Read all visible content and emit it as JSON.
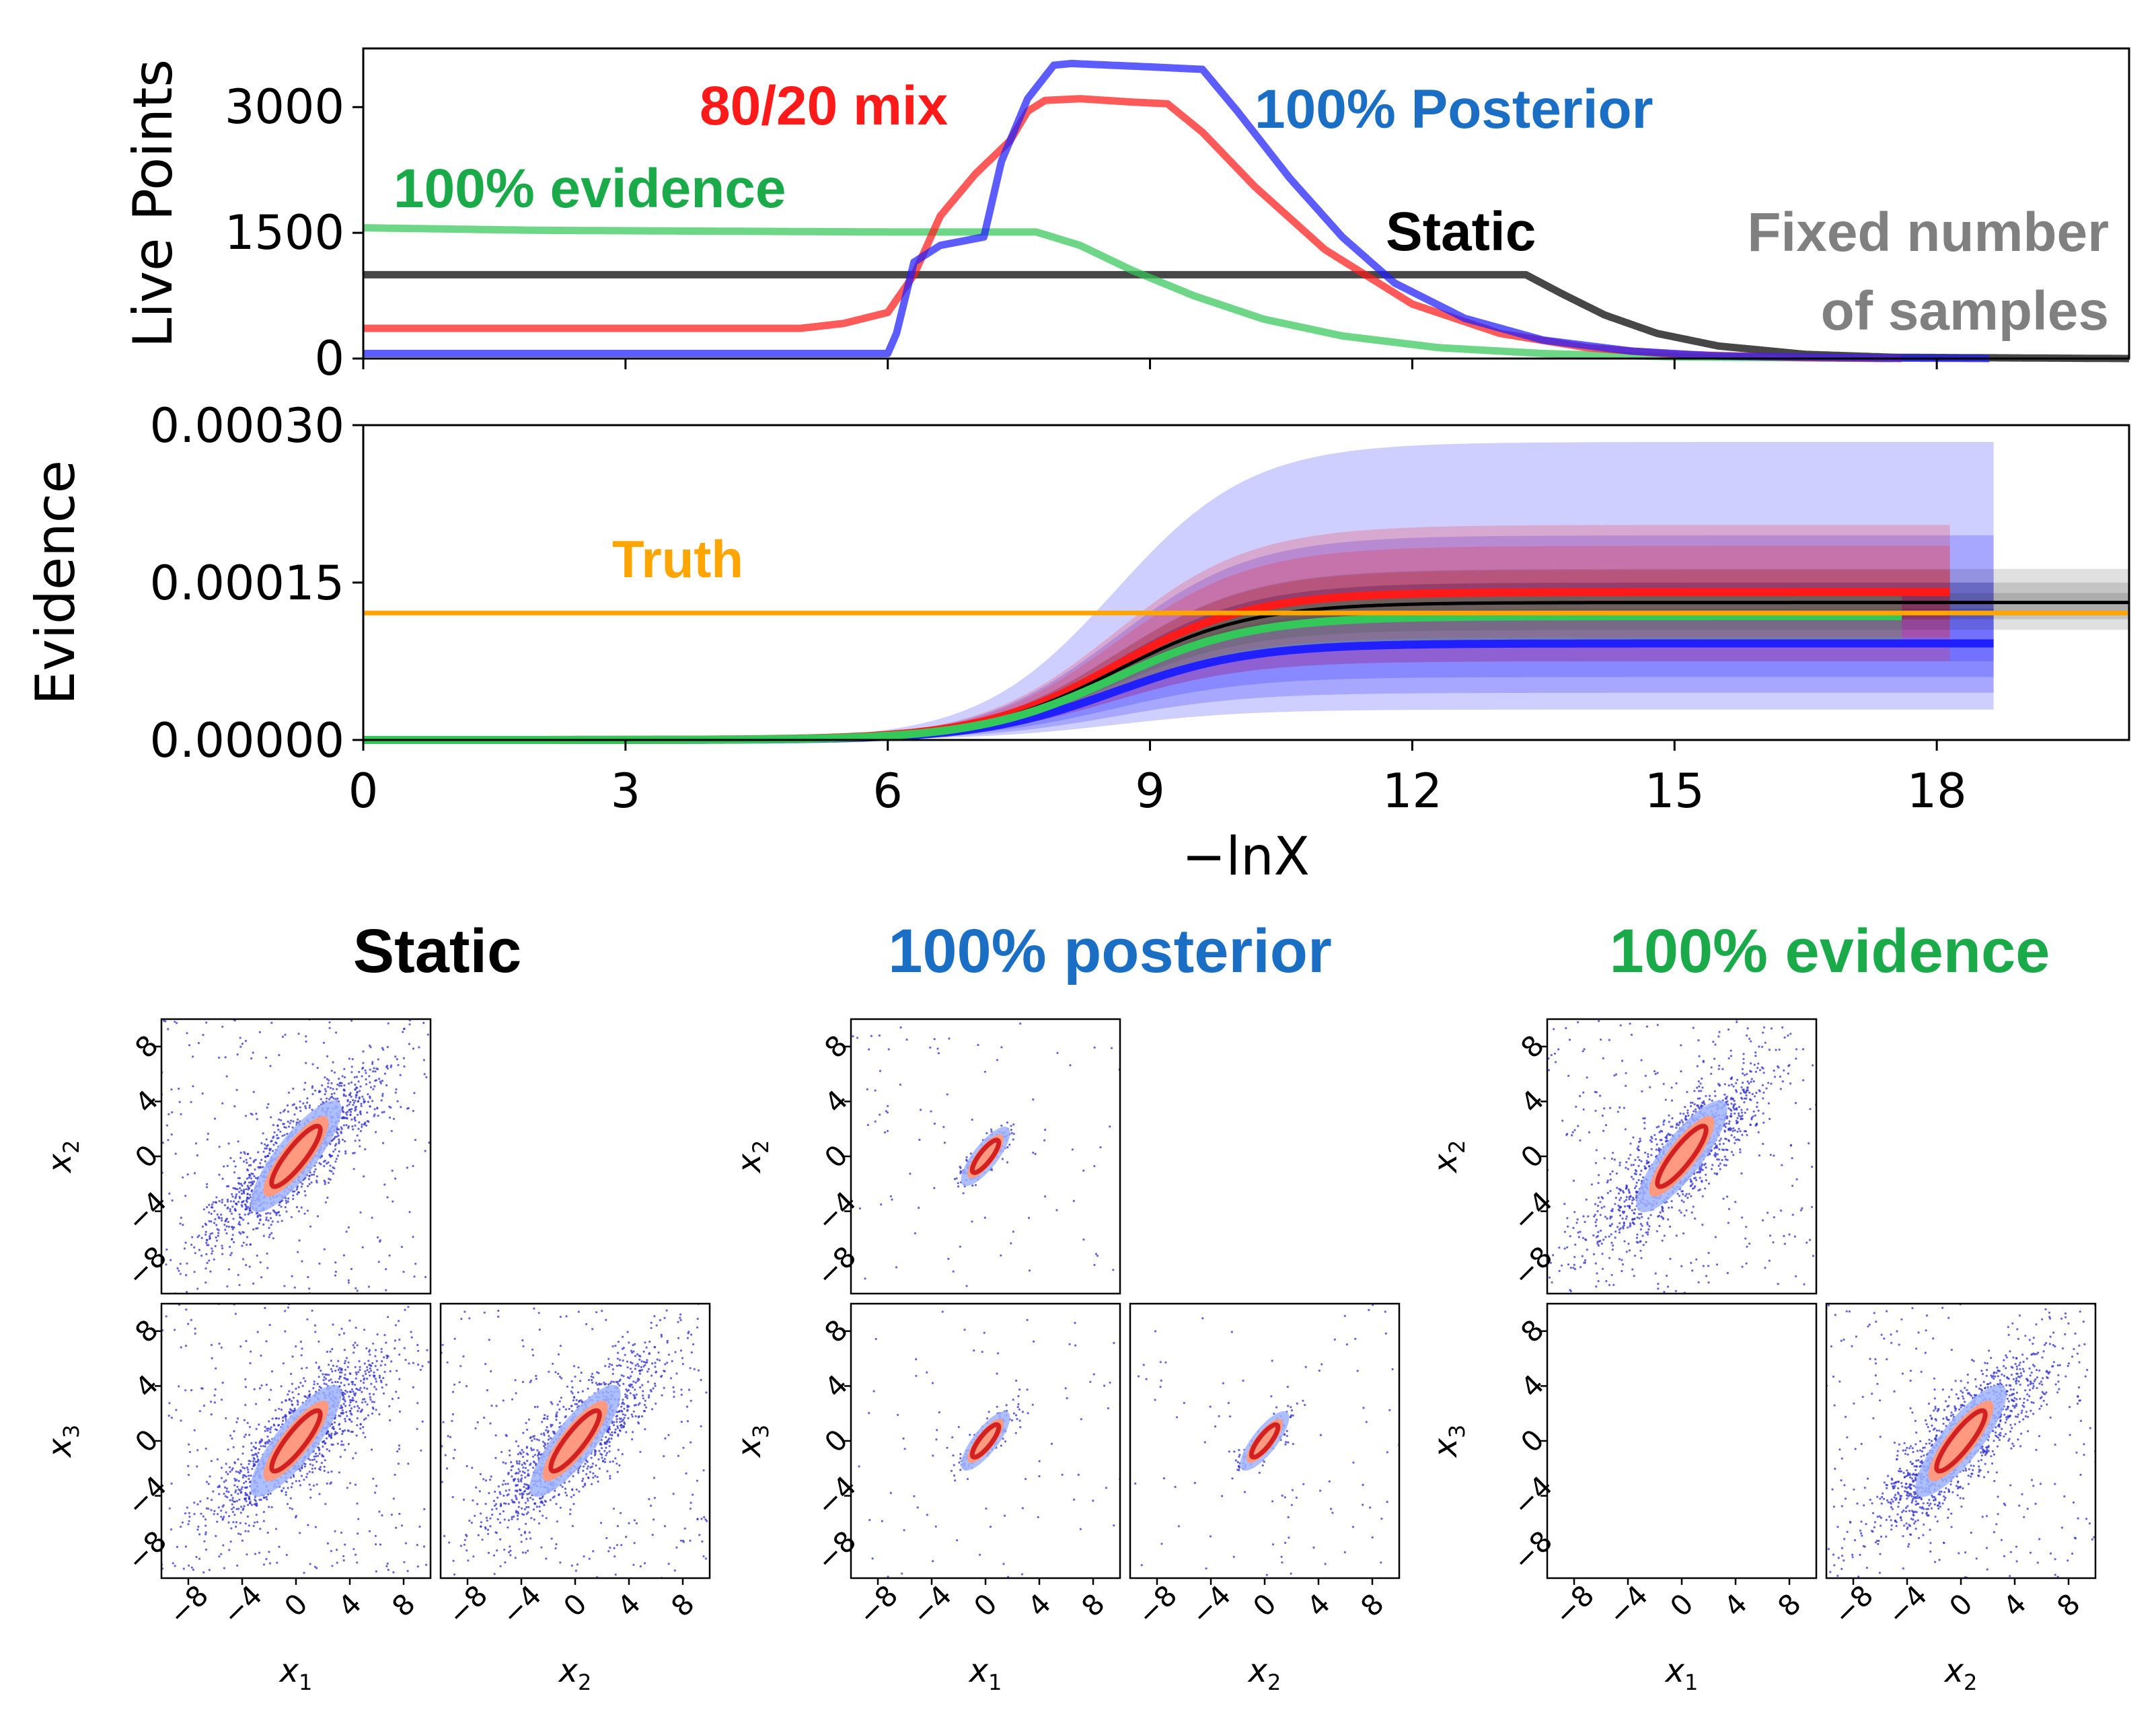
{
  "colors": {
    "static": "#000000",
    "posterior": "#1f1fff",
    "posterior_label": "#1a6fc4",
    "mix": "#ff1a1a",
    "evidence": "#34c759",
    "evidence_label": "#1aaa4a",
    "truth": "#ffa500",
    "fixed": "#808080",
    "scatter": "#3030d0"
  },
  "chart_data": [
    {
      "id": "live-points",
      "type": "line",
      "ylabel": "Live Points",
      "xlim": [
        0,
        20.2
      ],
      "ylim": [
        0,
        3700
      ],
      "yticks": [
        "0",
        "1500",
        "3000"
      ],
      "ytick_values": [
        0,
        1500,
        3000
      ],
      "xtick_values": [
        0,
        3,
        6,
        9,
        12,
        15,
        18
      ],
      "annotations": {
        "mix": "80/20 mix",
        "posterior": "100% Posterior",
        "evidence": "100% evidence",
        "static": "Static",
        "fixed_line1": "Fixed number",
        "fixed_line2": "of samples"
      },
      "series": [
        {
          "name": "Static",
          "color_key": "static",
          "x": [
            0,
            13.3,
            13.7,
            14.2,
            14.8,
            15.5,
            16.5,
            17.5,
            20.2
          ],
          "y": [
            1000,
            1000,
            780,
            520,
            300,
            150,
            50,
            15,
            0
          ]
        },
        {
          "name": "100% evidence",
          "color_key": "evidence",
          "x": [
            0,
            2,
            4,
            6,
            7.7,
            8.2,
            8.8,
            9.5,
            10.3,
            11.2,
            12.3,
            13.5,
            15,
            17.5
          ],
          "y": [
            1560,
            1530,
            1520,
            1510,
            1510,
            1350,
            1050,
            750,
            470,
            270,
            130,
            60,
            20,
            0
          ]
        },
        {
          "name": "80/20 mix",
          "color_key": "mix",
          "x": [
            0,
            5,
            5.5,
            6,
            6.3,
            6.6,
            7,
            7.4,
            7.6,
            7.8,
            8.2,
            8.8,
            9.2,
            9.6,
            10.2,
            11,
            12,
            13,
            14,
            15,
            16.5,
            17.6
          ],
          "y": [
            360,
            360,
            420,
            550,
            1000,
            1700,
            2200,
            2600,
            2950,
            3080,
            3100,
            3060,
            3040,
            2700,
            2050,
            1300,
            650,
            300,
            130,
            50,
            10,
            0
          ]
        },
        {
          "name": "100% Posterior",
          "color_key": "posterior",
          "x": [
            0,
            6,
            6.1,
            6.3,
            6.6,
            7.1,
            7.3,
            7.6,
            7.9,
            8.1,
            9.0,
            9.6,
            10.0,
            10.6,
            11.2,
            11.8,
            12.6,
            13.5,
            14.5,
            15.5,
            17.5,
            18.6
          ],
          "y": [
            60,
            60,
            300,
            1150,
            1350,
            1450,
            2350,
            3100,
            3500,
            3520,
            3480,
            3450,
            2950,
            2150,
            1450,
            900,
            480,
            220,
            90,
            30,
            5,
            0
          ]
        }
      ]
    },
    {
      "id": "evidence",
      "type": "area",
      "ylabel": "Evidence",
      "xlabel": "−lnX",
      "xlim": [
        0,
        20.2
      ],
      "ylim": [
        0,
        0.0003
      ],
      "yticks": [
        "0.00000",
        "0.00015",
        "0.00030"
      ],
      "ytick_values": [
        0,
        0.00015,
        0.0003
      ],
      "xticks": [
        "0",
        "3",
        "6",
        "9",
        "12",
        "15",
        "18"
      ],
      "xtick_values": [
        0,
        3,
        6,
        9,
        12,
        15,
        18
      ],
      "truth_label": "Truth",
      "truth_value": 0.000121,
      "curve": {
        "midpoint": 8.6,
        "width": 0.78
      },
      "series": [
        {
          "name": "100% Posterior",
          "color_key": "posterior",
          "final": 9.2e-05,
          "xend": 18.65,
          "band_opacity": 0.22,
          "bands": [
            [
              2.9e-05,
              0.000284
            ],
            [
              4.5e-05,
              0.000195
            ],
            [
              6e-05,
              0.00015
            ],
            [
              7.5e-05,
              0.000125
            ]
          ]
        },
        {
          "name": "80/20 mix",
          "color_key": "mix",
          "final": 0.000141,
          "xend": 18.15,
          "band_opacity": 0.2,
          "bands": [
            [
              7.5e-05,
              0.000205
            ],
            [
              9.8e-05,
              0.000185
            ],
            [
              0.000115,
              0.000162
            ]
          ]
        },
        {
          "name": "Static",
          "color_key": "static",
          "final": 0.000131,
          "xend": 20.2,
          "band_opacity": 0.12,
          "bands": [
            [
              0.000105,
              0.000163
            ],
            [
              0.000115,
              0.00015
            ],
            [
              0.000122,
              0.00014
            ]
          ]
        },
        {
          "name": "100% evidence",
          "color_key": "evidence",
          "final": 0.000118,
          "xend": 17.6,
          "band_opacity": 0.28,
          "bands": [
            [
              9.5e-05,
              0.00014
            ]
          ]
        }
      ]
    },
    {
      "id": "corner-static",
      "type": "scatter",
      "title": "Static",
      "title_color_key": "static",
      "spread": 1.0,
      "sparse": false,
      "density_colors": [
        "#a0b4ff",
        "#ff9a80",
        "#d32020"
      ],
      "xlim": [
        -10,
        10
      ],
      "ylim": [
        -10,
        10
      ],
      "ticks": [
        "−8",
        "−4",
        "0",
        "4",
        "8"
      ],
      "tick_values": [
        -8,
        -4,
        0,
        4,
        8
      ],
      "axis_labels": {
        "x1": "x",
        "x1_sub": "1",
        "x2": "x",
        "x2_sub": "2",
        "x3": "x",
        "x3_sub": "3"
      }
    },
    {
      "id": "corner-posterior",
      "type": "scatter",
      "title": "100% posterior",
      "title_color_key": "posterior_label",
      "spread": 0.35,
      "sparse": true,
      "density_colors": [
        "#a0b4ff",
        "#ff9a80",
        "#d32020"
      ],
      "xlim": [
        -10,
        10
      ],
      "ylim": [
        -10,
        10
      ],
      "ticks": [
        "−8",
        "−4",
        "0",
        "4",
        "8"
      ],
      "tick_values": [
        -8,
        -4,
        0,
        4,
        8
      ],
      "axis_labels": {
        "x1": "x",
        "x1_sub": "1",
        "x2": "x",
        "x2_sub": "2",
        "x3": "x",
        "x3_sub": "3"
      }
    },
    {
      "id": "corner-evidence",
      "type": "scatter",
      "title": "100% evidence",
      "title_color_key": "evidence_label",
      "spread": 1.0,
      "sparse": false,
      "density_colors": [
        "#a0b4ff",
        "#ff9a80",
        "#d32020"
      ],
      "xlim": [
        -10,
        10
      ],
      "ylim": [
        -10,
        10
      ],
      "ticks": [
        "−8",
        "−4",
        "0",
        "4",
        "8"
      ],
      "tick_values": [
        -8,
        -4,
        0,
        4,
        8
      ],
      "axis_labels": {
        "x1": "x",
        "x1_sub": "1",
        "x2": "x",
        "x2_sub": "2",
        "x3": "x",
        "x3_sub": "3"
      }
    }
  ]
}
